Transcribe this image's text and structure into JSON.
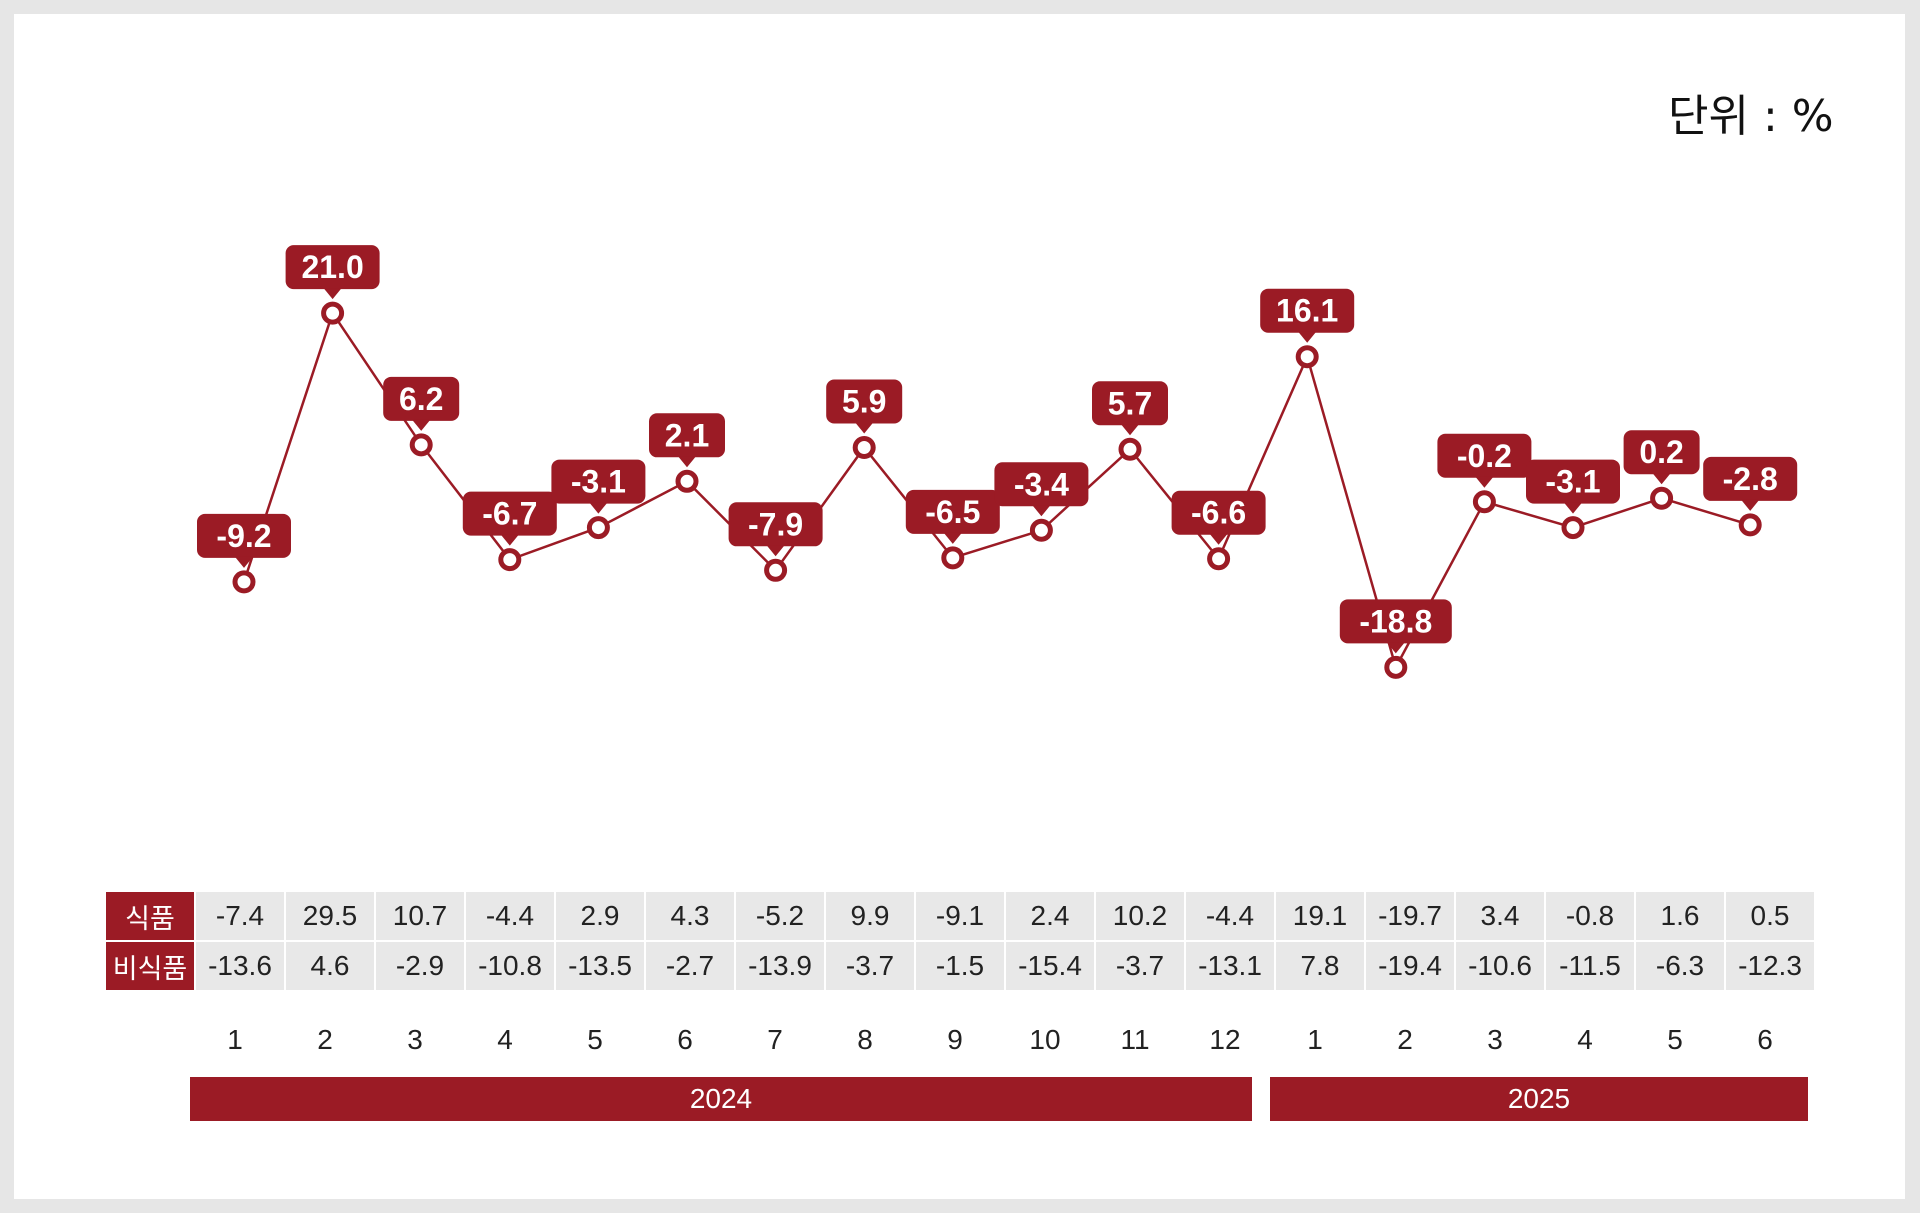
{
  "unit_label": "단위 : %",
  "chart_data": {
    "type": "line",
    "x": [
      "1",
      "2",
      "3",
      "4",
      "5",
      "6",
      "7",
      "8",
      "9",
      "10",
      "11",
      "12",
      "1",
      "2",
      "3",
      "4",
      "5",
      "6"
    ],
    "series": [
      {
        "values": [
          -9.2,
          21.0,
          6.2,
          -6.7,
          -3.1,
          2.1,
          -7.9,
          5.9,
          -6.5,
          -3.4,
          5.7,
          -6.6,
          16.1,
          -18.8,
          -0.2,
          -3.1,
          0.2,
          -2.8
        ]
      }
    ],
    "data_labels": [
      "-9.2",
      "21.0",
      "6.2",
      "-6.7",
      "-3.1",
      "2.1",
      "-7.9",
      "5.9",
      "-6.5",
      "-3.4",
      "5.7",
      "-6.6",
      "16.1",
      "-18.8",
      "-0.2",
      "-3.1",
      "0.2",
      "-2.8"
    ],
    "line_color": "#9b1b25",
    "grid": false
  },
  "table": {
    "rows": [
      {
        "label": "식품",
        "values": [
          "-7.4",
          "29.5",
          "10.7",
          "-4.4",
          "2.9",
          "4.3",
          "-5.2",
          "9.9",
          "-9.1",
          "2.4",
          "10.2",
          "-4.4",
          "19.1",
          "-19.7",
          "3.4",
          "-0.8",
          "1.6",
          "0.5"
        ]
      },
      {
        "label": "비식품",
        "values": [
          "-13.6",
          "4.6",
          "-2.9",
          "-10.8",
          "-13.5",
          "-2.7",
          "-13.9",
          "-3.7",
          "-1.5",
          "-15.4",
          "-3.7",
          "-13.1",
          "7.8",
          "-19.4",
          "-10.6",
          "-11.5",
          "-6.3",
          "-12.3"
        ]
      }
    ]
  },
  "months": [
    "1",
    "2",
    "3",
    "4",
    "5",
    "6",
    "7",
    "8",
    "9",
    "10",
    "11",
    "12",
    "1",
    "2",
    "3",
    "4",
    "5",
    "6"
  ],
  "years": [
    {
      "label": "2024",
      "span": 12
    },
    {
      "label": "2025",
      "span": 6
    }
  ]
}
